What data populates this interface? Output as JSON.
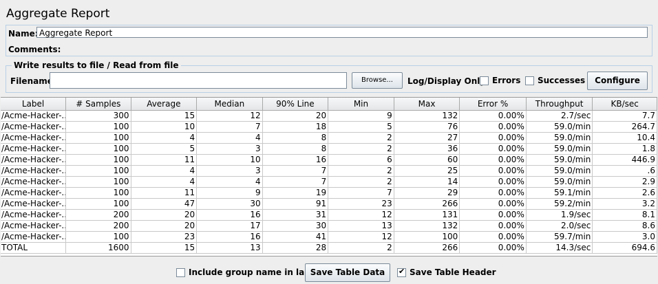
{
  "title": "Aggregate Report",
  "name": {
    "label": "Name:",
    "value": "Aggregate Report"
  },
  "comments": {
    "label": "Comments:"
  },
  "file_group": {
    "title": "Write results to file / Read from file",
    "filename_label": "Filename",
    "browse_label": "Browse...",
    "log_only_label": "Log/Display Only:",
    "errors_label": "Errors",
    "successes_label": "Successes",
    "configure_label": "Configure"
  },
  "table": {
    "columns": [
      "Label",
      "# Samples",
      "Average",
      "Median",
      "90% Line",
      "Min",
      "Max",
      "Error %",
      "Throughput",
      "KB/sec"
    ],
    "rows": [
      [
        "/Acme-Hacker-...",
        "300",
        "15",
        "12",
        "20",
        "9",
        "132",
        "0.00%",
        "2.7/sec",
        "7.7"
      ],
      [
        "/Acme-Hacker-...",
        "100",
        "10",
        "7",
        "18",
        "5",
        "76",
        "0.00%",
        "59.0/min",
        "264.7"
      ],
      [
        "/Acme-Hacker-...",
        "100",
        "4",
        "4",
        "8",
        "2",
        "27",
        "0.00%",
        "59.0/min",
        "10.4"
      ],
      [
        "/Acme-Hacker-...",
        "100",
        "5",
        "3",
        "8",
        "2",
        "36",
        "0.00%",
        "59.0/min",
        "1.8"
      ],
      [
        "/Acme-Hacker-...",
        "100",
        "11",
        "10",
        "16",
        "6",
        "60",
        "0.00%",
        "59.0/min",
        "446.9"
      ],
      [
        "/Acme-Hacker-...",
        "100",
        "4",
        "3",
        "7",
        "2",
        "25",
        "0.00%",
        "59.0/min",
        ".6"
      ],
      [
        "/Acme-Hacker-...",
        "100",
        "4",
        "4",
        "7",
        "2",
        "14",
        "0.00%",
        "59.0/min",
        "2.9"
      ],
      [
        "/Acme-Hacker-...",
        "100",
        "11",
        "9",
        "19",
        "7",
        "29",
        "0.00%",
        "59.1/min",
        "2.6"
      ],
      [
        "/Acme-Hacker-...",
        "100",
        "47",
        "30",
        "91",
        "23",
        "266",
        "0.00%",
        "59.2/min",
        "3.2"
      ],
      [
        "/Acme-Hacker-...",
        "200",
        "20",
        "16",
        "31",
        "12",
        "131",
        "0.00%",
        "1.9/sec",
        "8.1"
      ],
      [
        "/Acme-Hacker-...",
        "200",
        "20",
        "17",
        "30",
        "13",
        "132",
        "0.00%",
        "2.0/sec",
        "8.6"
      ],
      [
        "/Acme-Hacker-...",
        "100",
        "23",
        "16",
        "41",
        "12",
        "100",
        "0.00%",
        "59.7/min",
        "3.0"
      ],
      [
        "TOTAL",
        "1600",
        "15",
        "13",
        "28",
        "2",
        "266",
        "0.00%",
        "14.3/sec",
        "694.6"
      ]
    ]
  },
  "bottom": {
    "include_group_label": "Include group name in label?",
    "include_group_checked": false,
    "save_table_data_label": "Save Table Data",
    "save_table_header_label": "Save Table Header",
    "save_table_header_checked": true
  }
}
